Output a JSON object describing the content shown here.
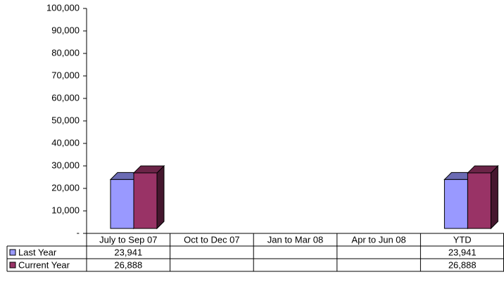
{
  "chart_data": {
    "type": "bar3d",
    "categories": [
      "July to Sep 07",
      "Oct to Dec 07",
      "Jan to Mar 08",
      "Apr to Jun 08",
      "YTD"
    ],
    "series": [
      {
        "name": "Last Year",
        "color": "#9999ff",
        "values": [
          23941,
          null,
          null,
          null,
          23941
        ],
        "value_labels": [
          "23,941",
          null,
          null,
          null,
          "23,941"
        ]
      },
      {
        "name": "Current Year",
        "color": "#993366",
        "values": [
          26888,
          null,
          null,
          null,
          26888
        ],
        "value_labels": [
          "26,888",
          null,
          null,
          null,
          "26,888"
        ]
      }
    ],
    "ylim": [
      0,
      100000
    ],
    "yticks": [
      {
        "value": 0,
        "label": "-"
      },
      {
        "value": 10000,
        "label": "10,000"
      },
      {
        "value": 20000,
        "label": "20,000"
      },
      {
        "value": 30000,
        "label": "30,000"
      },
      {
        "value": 40000,
        "label": "40,000"
      },
      {
        "value": 50000,
        "label": "50,000"
      },
      {
        "value": 60000,
        "label": "60,000"
      },
      {
        "value": 70000,
        "label": "70,000"
      },
      {
        "value": 80000,
        "label": "80,000"
      },
      {
        "value": 90000,
        "label": "90,000"
      },
      {
        "value": 100000,
        "label": "100,000"
      }
    ]
  }
}
